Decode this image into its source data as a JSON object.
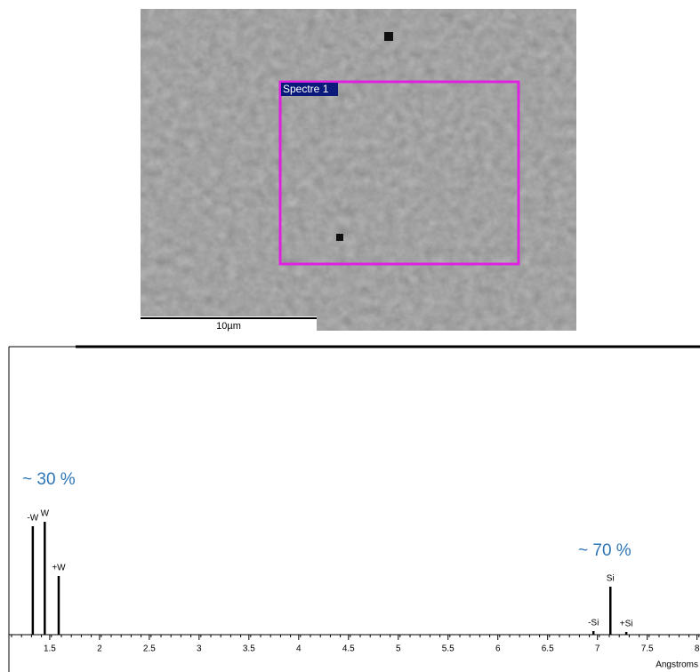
{
  "image": {
    "label": "Spectre 1",
    "scale_bar": "10µm"
  },
  "chart_data": {
    "type": "spectrum",
    "x_label": "Angstroms",
    "annotations": [
      "~ 30 %",
      "~ 70 %"
    ],
    "peaks": [
      {
        "label": "-W",
        "x": 1.33,
        "height": 122
      },
      {
        "label": "W",
        "x": 1.45,
        "height": 127
      },
      {
        "label": "+W",
        "x": 1.59,
        "height": 66
      },
      {
        "label": "-Si",
        "x": 6.96,
        "height": 4
      },
      {
        "label": "Si",
        "x": 7.13,
        "height": 54
      },
      {
        "label": "+Si",
        "x": 7.29,
        "height": 3
      }
    ],
    "color": "#000000",
    "annotation_color": "#2e75b6",
    "xlim": [
      1.09,
      8.03
    ],
    "ylim": [
      0,
      324
    ],
    "xticks": [
      1.5,
      2,
      2.5,
      3,
      3.5,
      4,
      4.5,
      5,
      5.5,
      6,
      6.5,
      7,
      7.5,
      8
    ]
  }
}
